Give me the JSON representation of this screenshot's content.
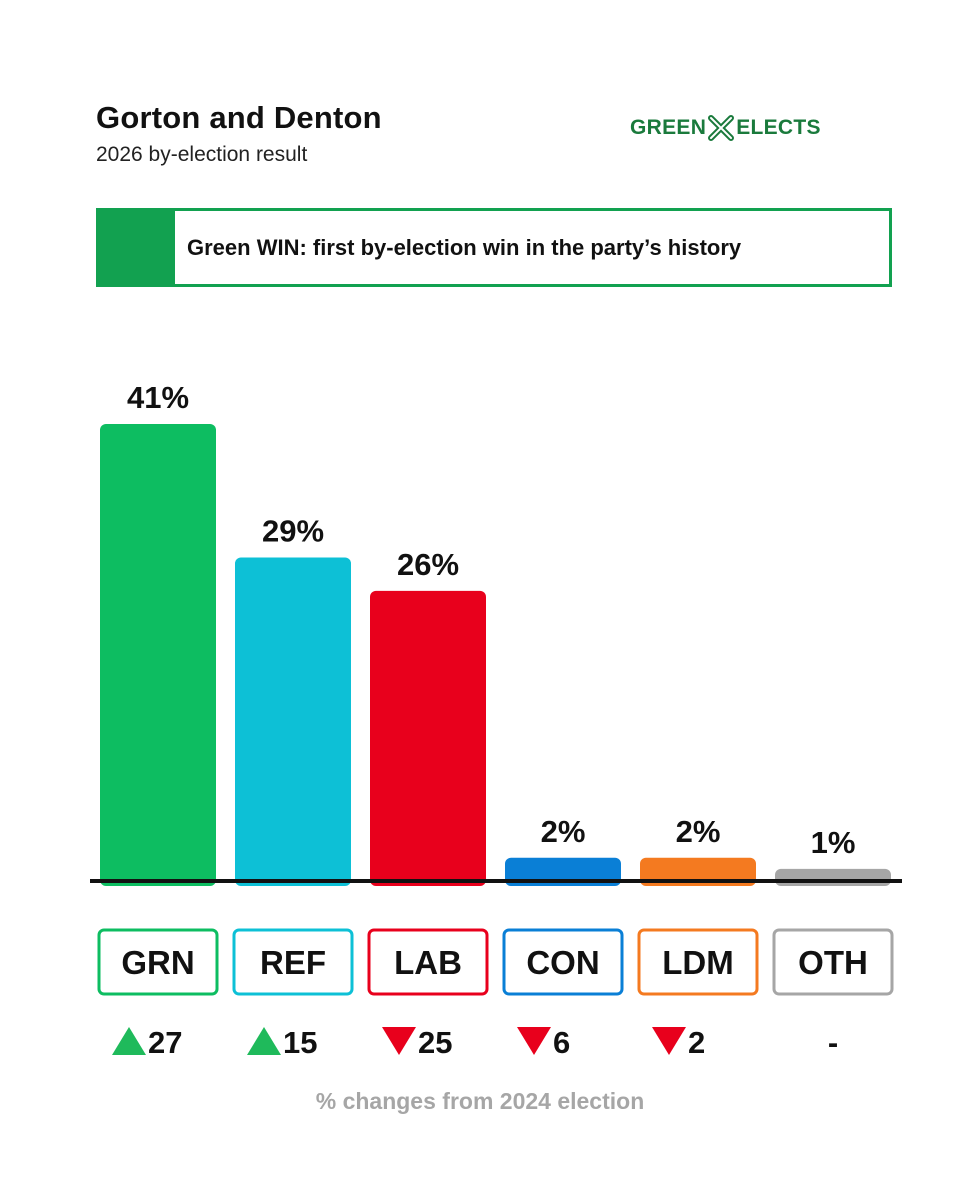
{
  "header": {
    "title": "Gorton and Denton",
    "subtitle": "2026 by-election result",
    "logo_left": "GREEN",
    "logo_right": "ELECTS",
    "logo_icon": "cross-x-icon"
  },
  "banner": {
    "text": "Green WIN: first by-election win in the party’s history",
    "color": "#12a150"
  },
  "footnote": "% changes from 2024 election",
  "chart_data": {
    "type": "bar",
    "categories": [
      "GRN",
      "REF",
      "LAB",
      "CON",
      "LDM",
      "OTH"
    ],
    "values": [
      41,
      29,
      26,
      2,
      2,
      1
    ],
    "data_labels": [
      "41%",
      "29%",
      "26%",
      "2%",
      "2%",
      "1%"
    ],
    "colors": [
      "#0dbd61",
      "#0dc0d6",
      "#e8001c",
      "#0a7fd6",
      "#f47a20",
      "#a6a6a6"
    ],
    "changes": [
      {
        "direction": "up",
        "text": "27"
      },
      {
        "direction": "up",
        "text": "15"
      },
      {
        "direction": "down",
        "text": "25"
      },
      {
        "direction": "down",
        "text": "6"
      },
      {
        "direction": "down",
        "text": "2"
      },
      {
        "direction": "none",
        "text": "-"
      }
    ],
    "up_color": "#1fba5b",
    "down_color": "#e8001c",
    "ylim": [
      0,
      41
    ],
    "grid": false,
    "legend": "none"
  }
}
